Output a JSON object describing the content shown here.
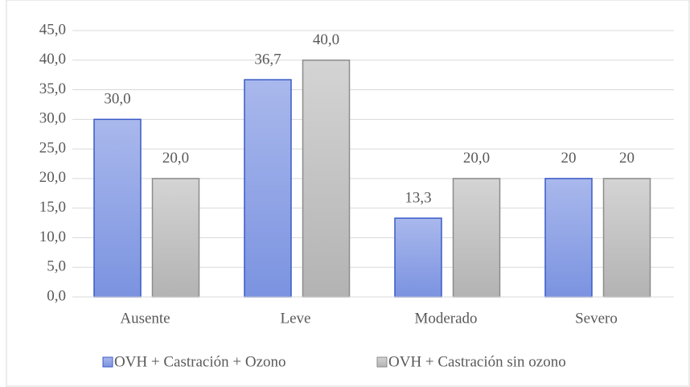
{
  "chart_data": {
    "type": "bar",
    "categories": [
      "Ausente",
      "Leve",
      "Moderado",
      "Severo"
    ],
    "series": [
      {
        "name": "OVH + Castración + Ozono",
        "color": "#7b93e0",
        "values": [
          30.0,
          36.7,
          13.3,
          20
        ],
        "value_labels": [
          "30,0",
          "36,7",
          "13,3",
          "20"
        ]
      },
      {
        "name": "OVH + Castración sin ozono",
        "color": "#bdbdbd",
        "values": [
          20.0,
          40.0,
          20.0,
          20
        ],
        "value_labels": [
          "20,0",
          "40,0",
          "20,0",
          "20"
        ]
      }
    ],
    "ylim": [
      0,
      45
    ],
    "yticks": [
      {
        "value": 0,
        "label": "0,0"
      },
      {
        "value": 5,
        "label": "5,0"
      },
      {
        "value": 10,
        "label": "10,0"
      },
      {
        "value": 15,
        "label": "15,0"
      },
      {
        "value": 20,
        "label": "20,0"
      },
      {
        "value": 25,
        "label": "25,0"
      },
      {
        "value": 30,
        "label": "30,0"
      },
      {
        "value": 35,
        "label": "35,0"
      },
      {
        "value": 40,
        "label": "40,0"
      },
      {
        "value": 45,
        "label": "45,0"
      }
    ],
    "grid": true,
    "legend": "bottom"
  }
}
